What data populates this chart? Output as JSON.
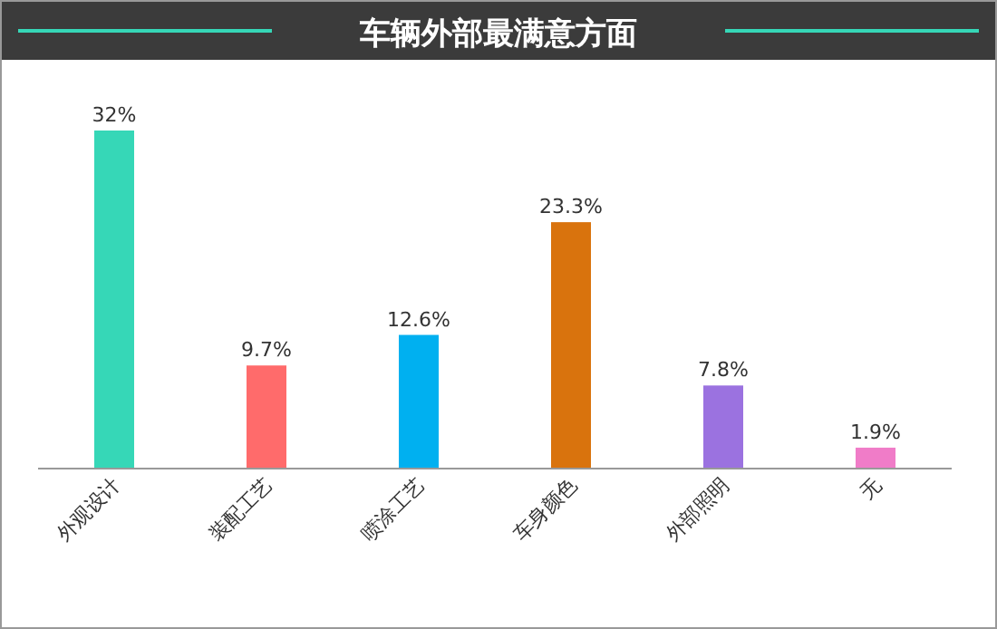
{
  "chart_data": {
    "type": "bar",
    "title": "车辆外部最满意方面",
    "categories": [
      "外观设计",
      "装配工艺",
      "喷涂工艺",
      "车身颜色",
      "外部照明",
      "无"
    ],
    "values": [
      32,
      9.7,
      12.6,
      23.3,
      7.8,
      1.9
    ],
    "colors": [
      "#36d7b7",
      "#ff6b6b",
      "#00b0f0",
      "#d9730d",
      "#9b72e0",
      "#f07cc8"
    ],
    "value_labels": [
      "32%",
      "9.7%",
      "12.6%",
      "23.3%",
      "7.8%",
      "1.9%"
    ]
  }
}
